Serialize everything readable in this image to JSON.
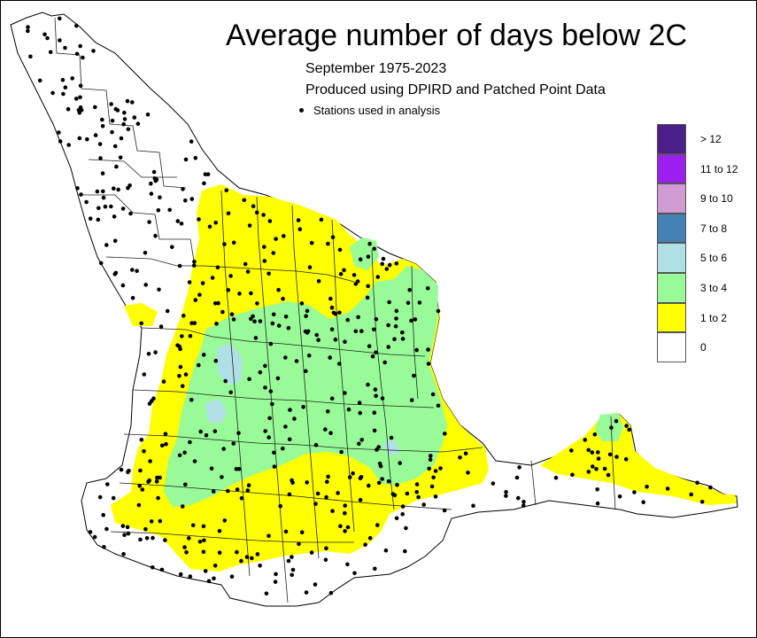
{
  "title": "Average number of days below 2C",
  "subtitle_period": "September 1975-2023",
  "subtitle_source": "Produced using DPIRD and Patched Point Data",
  "stations_label": "Stations used in analysis",
  "legend": [
    {
      "label": "> 12",
      "color": "#4b1f87"
    },
    {
      "label": "11 to 12",
      "color": "#9c1ff0"
    },
    {
      "label": "9 to 10",
      "color": "#cf9bd2"
    },
    {
      "label": "7 to 8",
      "color": "#4681b6"
    },
    {
      "label": "5 to 6",
      "color": "#b0e0e6"
    },
    {
      "label": "3 to 4",
      "color": "#98fb98"
    },
    {
      "label": "1 to 2",
      "color": "#ffff00"
    },
    {
      "label": "0",
      "color": "#ffffff"
    }
  ]
}
